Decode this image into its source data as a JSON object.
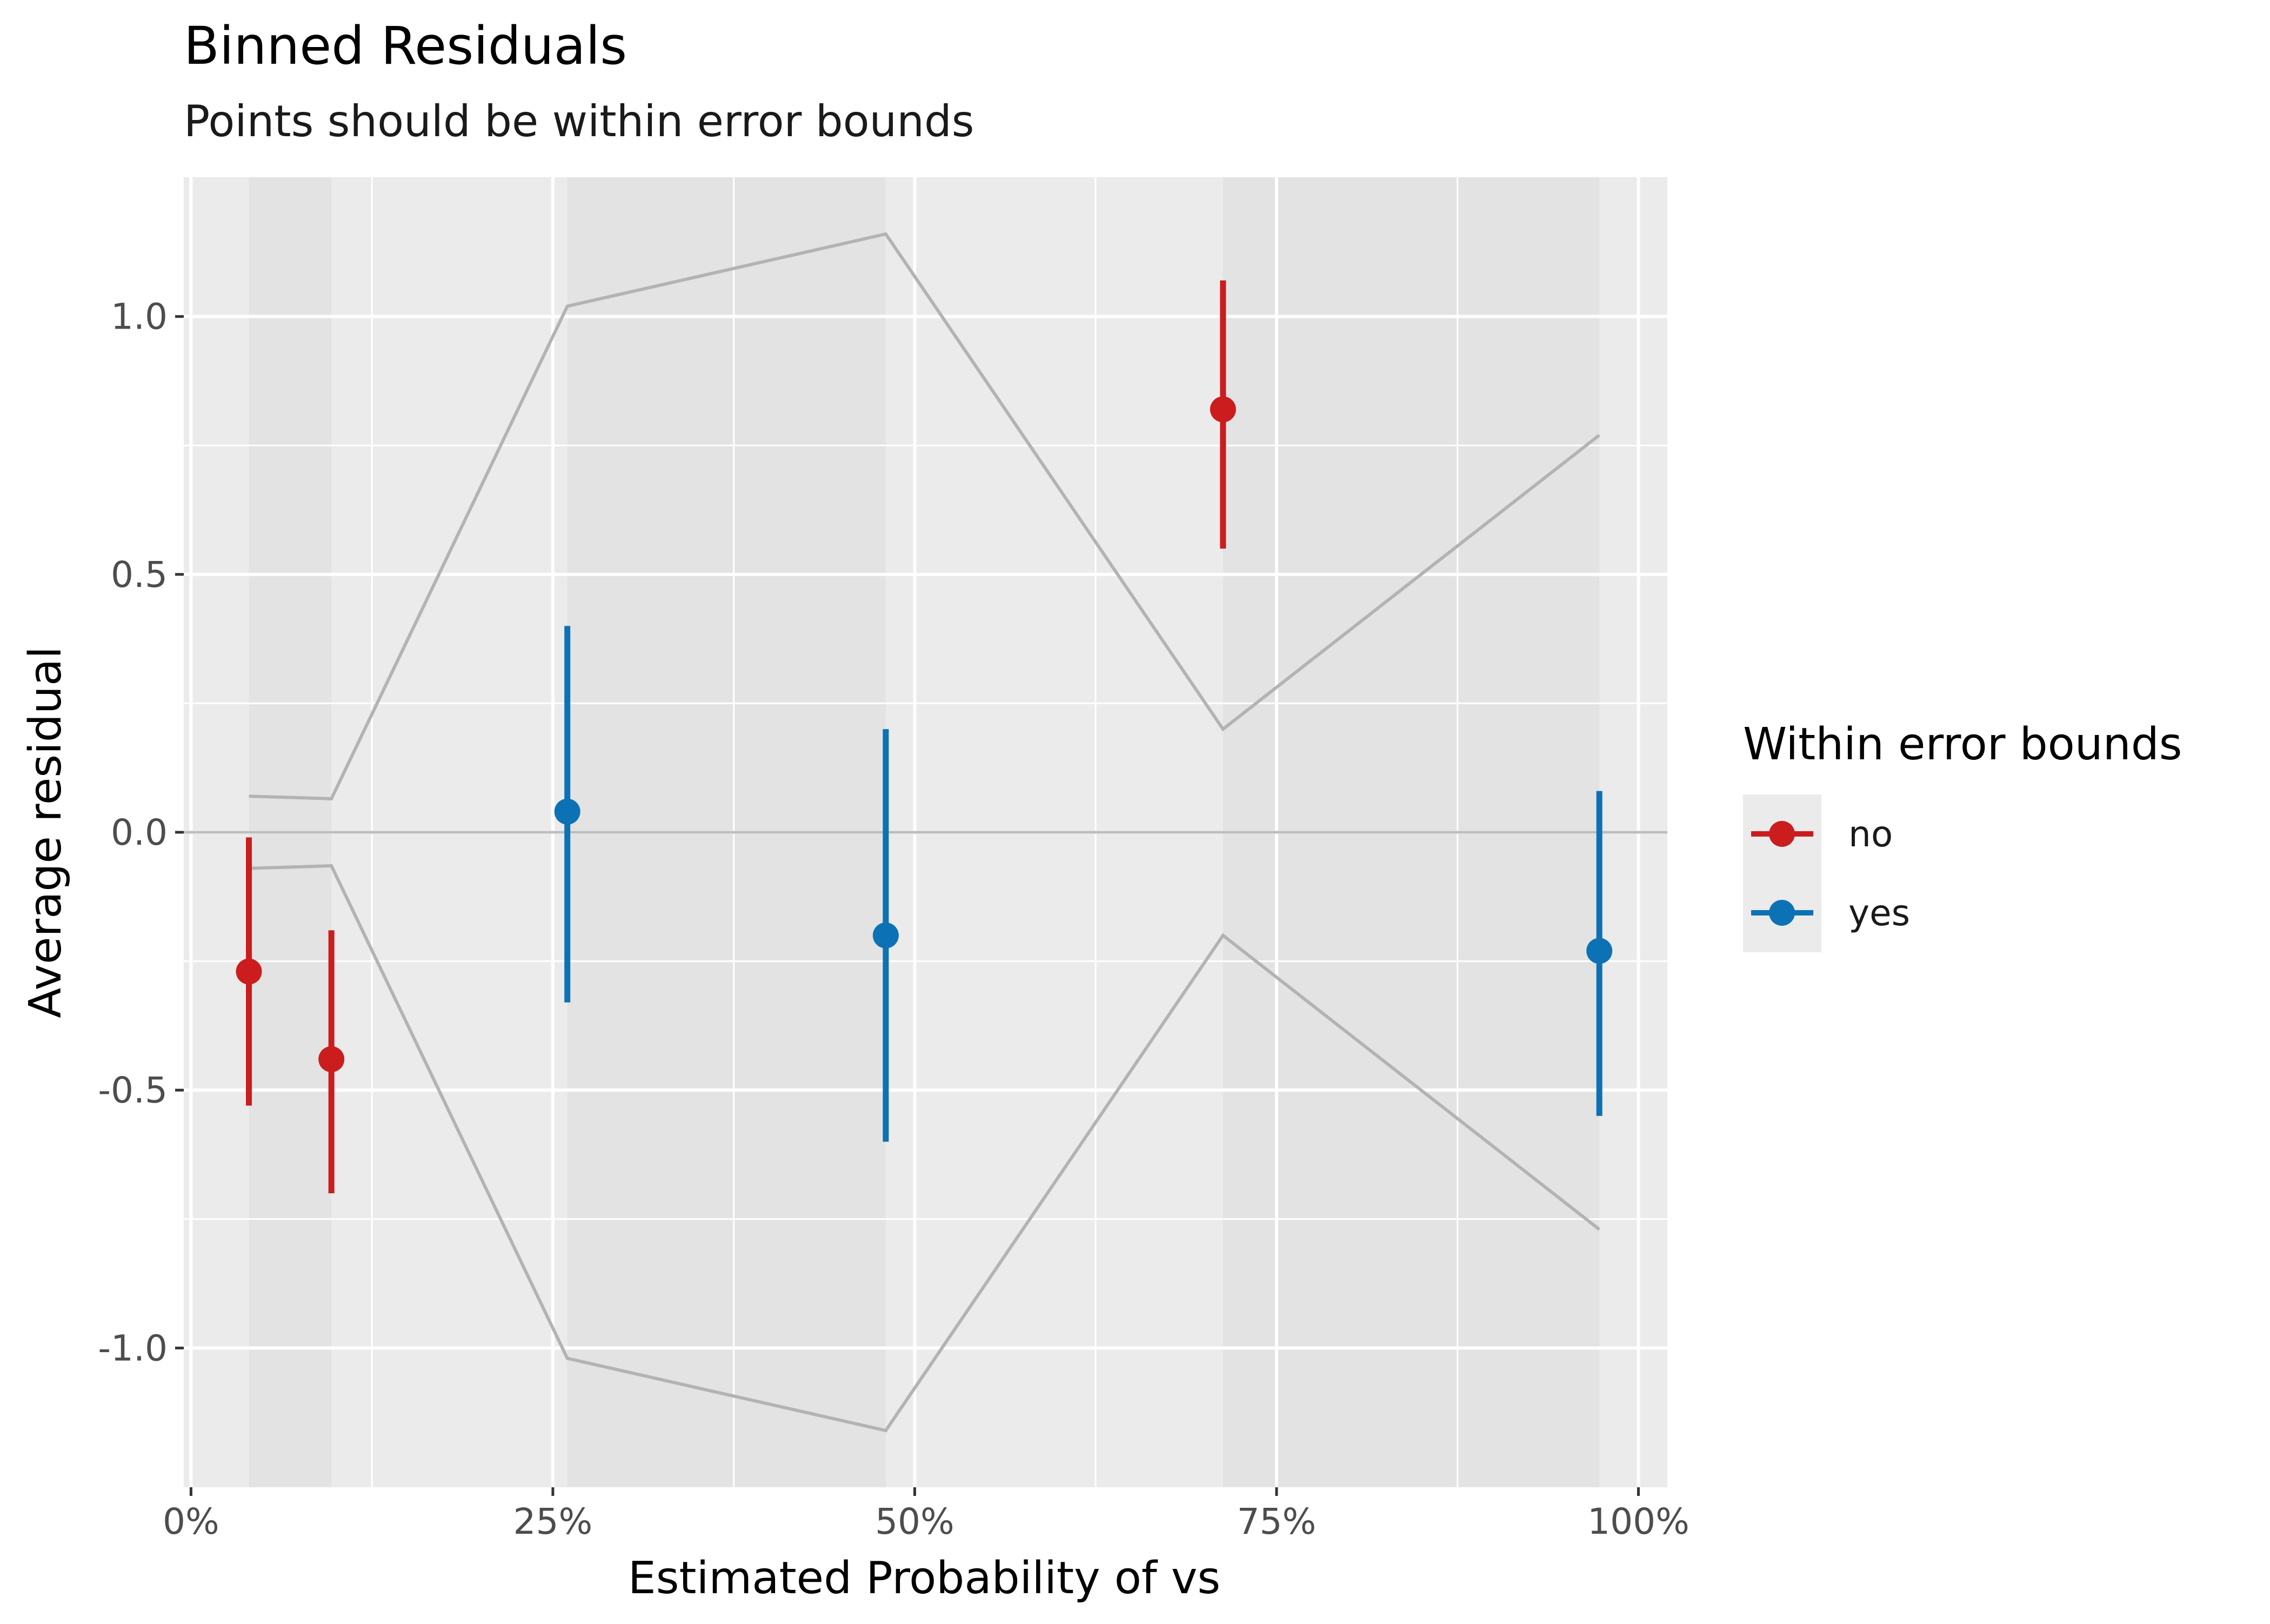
{
  "chart_data": {
    "type": "scatter",
    "title": "Binned Residuals",
    "subtitle": "Points should be within error bounds",
    "xlabel": "Estimated Probability of vs",
    "ylabel": "Average residual",
    "xlim": [
      -0.005,
      1.02
    ],
    "ylim": [
      -1.27,
      1.27
    ],
    "x_ticks": [
      0,
      0.25,
      0.5,
      0.75,
      1.0
    ],
    "x_tick_labels": [
      "0%",
      "25%",
      "50%",
      "75%",
      "100%"
    ],
    "y_ticks": [
      -1.0,
      -0.5,
      0.0,
      0.5,
      1.0
    ],
    "y_tick_labels": [
      "-1.0",
      "-0.5",
      "0.0",
      "0.5",
      "1.0"
    ],
    "grid": true,
    "legend": {
      "title": "Within error bounds",
      "position": "right",
      "entries": [
        {
          "label": "no",
          "color": "#cb1c1e"
        },
        {
          "label": "yes",
          "color": "#0c72b5"
        }
      ]
    },
    "bins": [
      {
        "x": 0.04,
        "y": -0.27,
        "ymin": -0.53,
        "ymax": -0.01,
        "bound_lower": -0.07,
        "bound_upper": 0.07,
        "within": "no"
      },
      {
        "x": 0.097,
        "y": -0.44,
        "ymin": -0.7,
        "ymax": -0.19,
        "bound_lower": -0.065,
        "bound_upper": 0.065,
        "within": "no"
      },
      {
        "x": 0.26,
        "y": 0.04,
        "ymin": -0.33,
        "ymax": 0.4,
        "bound_lower": -1.02,
        "bound_upper": 1.02,
        "within": "yes"
      },
      {
        "x": 0.48,
        "y": -0.2,
        "ymin": -0.6,
        "ymax": 0.2,
        "bound_lower": -1.16,
        "bound_upper": 1.16,
        "within": "yes"
      },
      {
        "x": 0.713,
        "y": 0.82,
        "ymin": 0.55,
        "ymax": 1.07,
        "bound_lower": -0.2,
        "bound_upper": 0.2,
        "within": "no"
      },
      {
        "x": 0.973,
        "y": -0.23,
        "ymin": -0.55,
        "ymax": 0.08,
        "bound_lower": -0.77,
        "bound_upper": 0.77,
        "within": "yes"
      }
    ],
    "colors": {
      "no": "#cb1c1e",
      "yes": "#0c72b5",
      "panel_bg": "#ebebeb",
      "band_bg": "#e3e3e3",
      "grid": "#ffffff",
      "bounds_line": "#b3b3b3",
      "zero_line": "#bdbdbd"
    }
  }
}
